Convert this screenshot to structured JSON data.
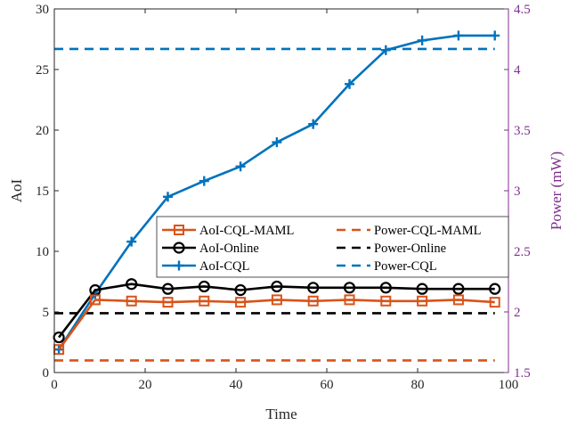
{
  "chart_data": {
    "type": "line",
    "xlabel": "Time",
    "ylabel_left": "AoI",
    "ylabel_right": "Power (mW)",
    "xlim": [
      0,
      100
    ],
    "ylim_left": [
      0,
      30
    ],
    "ylim_right": [
      1.5,
      4.5
    ],
    "x_ticks": [
      "0",
      "20",
      "40",
      "60",
      "80",
      "100"
    ],
    "y_ticks_left": [
      "0",
      "5",
      "10",
      "15",
      "20",
      "25",
      "30"
    ],
    "y_ticks_right": [
      "1.5",
      "2",
      "2.5",
      "3",
      "3.5",
      "4",
      "4.5"
    ],
    "grid": false,
    "legend_position": "center-right",
    "colors": {
      "maml": "#D95319",
      "online": "#000000",
      "cql": "#0072BD",
      "right_axis": "#7E2F8E",
      "axes": "#262626"
    },
    "series": [
      {
        "name": "AoI-CQL-MAML",
        "axis": "left",
        "style": "solid",
        "marker": "square",
        "color": "#D95319",
        "x": [
          1,
          9,
          17,
          25,
          33,
          41,
          49,
          57,
          65,
          73,
          81,
          89,
          97
        ],
        "y": [
          1.9,
          6.0,
          5.9,
          5.8,
          5.9,
          5.8,
          6.0,
          5.9,
          6.0,
          5.9,
          5.9,
          6.0,
          5.8
        ]
      },
      {
        "name": "AoI-Online",
        "axis": "left",
        "style": "solid",
        "marker": "circle",
        "color": "#000000",
        "x": [
          1,
          9,
          17,
          25,
          33,
          41,
          49,
          57,
          65,
          73,
          81,
          89,
          97
        ],
        "y": [
          2.9,
          6.8,
          7.3,
          6.9,
          7.1,
          6.8,
          7.1,
          7.0,
          7.0,
          7.0,
          6.9,
          6.9,
          6.9
        ]
      },
      {
        "name": "AoI-CQL",
        "axis": "left",
        "style": "solid",
        "marker": "plus",
        "color": "#0072BD",
        "x": [
          1,
          9,
          17,
          25,
          33,
          41,
          49,
          57,
          65,
          73,
          81,
          89,
          97
        ],
        "y": [
          1.9,
          6.5,
          10.8,
          14.5,
          15.8,
          17.0,
          19.0,
          20.5,
          23.8,
          26.6,
          27.4,
          27.8,
          27.8
        ]
      },
      {
        "name": "Power-CQL-MAML",
        "axis": "right",
        "style": "dashed",
        "marker": "none",
        "color": "#D95319",
        "x": [
          0,
          97
        ],
        "y": [
          1.6,
          1.6
        ]
      },
      {
        "name": "Power-Online",
        "axis": "right",
        "style": "dashed",
        "marker": "none",
        "color": "#000000",
        "x": [
          0,
          97
        ],
        "y": [
          1.99,
          1.99
        ]
      },
      {
        "name": "Power-CQL",
        "axis": "right",
        "style": "dashed",
        "marker": "none",
        "color": "#0072BD",
        "x": [
          0,
          97
        ],
        "y": [
          4.17,
          4.17
        ]
      }
    ],
    "legend": [
      [
        "AoI-CQL-MAML",
        "Power-CQL-MAML"
      ],
      [
        "AoI-Online",
        "Power-Online"
      ],
      [
        "AoI-CQL",
        "Power-CQL"
      ]
    ]
  }
}
